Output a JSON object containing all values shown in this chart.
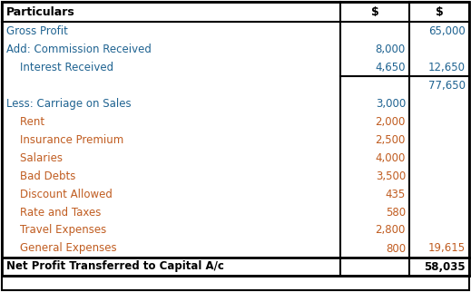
{
  "header": [
    "Particulars",
    "$",
    "$"
  ],
  "rows": [
    {
      "label": "Gross Profit",
      "col1": "",
      "col2": "65,000",
      "indent": 0,
      "is_footer": false,
      "color": "#1F6391"
    },
    {
      "label": "Add: Commission Received",
      "col1": "8,000",
      "col2": "",
      "indent": 0,
      "is_footer": false,
      "color": "#1F6391"
    },
    {
      "label": "    Interest Received",
      "col1": "4,650",
      "col2": "12,650",
      "indent": 0,
      "is_footer": false,
      "color": "#1F6391"
    },
    {
      "label": "",
      "col1": "",
      "col2": "77,650",
      "indent": 0,
      "is_footer": false,
      "color": "#1F6391",
      "top_border": true
    },
    {
      "label": "Less: Carriage on Sales",
      "col1": "3,000",
      "col2": "",
      "indent": 0,
      "is_footer": false,
      "color": "#1F6391"
    },
    {
      "label": "    Rent",
      "col1": "2,000",
      "col2": "",
      "indent": 0,
      "is_footer": false,
      "color": "#C05C20"
    },
    {
      "label": "    Insurance Premium",
      "col1": "2,500",
      "col2": "",
      "indent": 0,
      "is_footer": false,
      "color": "#C05C20"
    },
    {
      "label": "    Salaries",
      "col1": "4,000",
      "col2": "",
      "indent": 0,
      "is_footer": false,
      "color": "#C05C20"
    },
    {
      "label": "    Bad Debts",
      "col1": "3,500",
      "col2": "",
      "indent": 0,
      "is_footer": false,
      "color": "#C05C20"
    },
    {
      "label": "    Discount Allowed",
      "col1": "435",
      "col2": "",
      "indent": 0,
      "is_footer": false,
      "color": "#C05C20"
    },
    {
      "label": "    Rate and Taxes",
      "col1": "580",
      "col2": "",
      "indent": 0,
      "is_footer": false,
      "color": "#C05C20"
    },
    {
      "label": "    Travel Expenses",
      "col1": "2,800",
      "col2": "",
      "indent": 0,
      "is_footer": false,
      "color": "#C05C20"
    },
    {
      "label": "    General Expenses",
      "col1": "800",
      "col2": "19,615",
      "indent": 0,
      "is_footer": false,
      "color": "#C05C20"
    },
    {
      "label": "Net Profit Transferred to Capital A/c",
      "col1": "",
      "col2": "58,035",
      "indent": 0,
      "is_footer": true,
      "color": "#000000"
    }
  ],
  "border_color": "#000000",
  "bg_color": "#FFFFFF",
  "font_size": 8.5,
  "header_font_size": 9.0
}
